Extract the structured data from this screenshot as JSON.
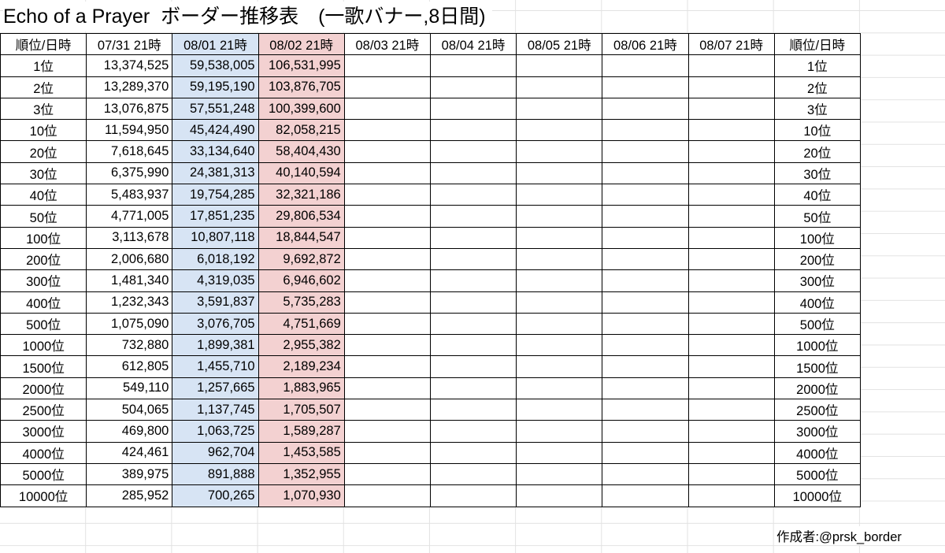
{
  "title": "Echo of a Prayer  ボーダー推移表　(一歌バナー,8日間)",
  "table": {
    "header": [
      "順位/日時",
      "07/31 21時",
      "08/01 21時",
      "08/02 21時",
      "08/03 21時",
      "08/04 21時",
      "08/05 21時",
      "08/06 21時",
      "08/07 21時",
      "順位/日時"
    ],
    "rows": [
      [
        "1位",
        "13,374,525",
        "59,538,005",
        "106,531,995",
        "1位"
      ],
      [
        "2位",
        "13,289,370",
        "59,195,190",
        "103,876,705",
        "2位"
      ],
      [
        "3位",
        "13,076,875",
        "57,551,248",
        "100,399,600",
        "3位"
      ],
      [
        "10位",
        "11,594,950",
        "45,424,490",
        "82,058,215",
        "10位"
      ],
      [
        "20位",
        "7,618,645",
        "33,134,640",
        "58,404,430",
        "20位"
      ],
      [
        "30位",
        "6,375,990",
        "24,381,313",
        "40,140,594",
        "30位"
      ],
      [
        "40位",
        "5,483,937",
        "19,754,285",
        "32,321,186",
        "40位"
      ],
      [
        "50位",
        "4,771,005",
        "17,851,235",
        "29,806,534",
        "50位"
      ],
      [
        "100位",
        "3,113,678",
        "10,807,118",
        "18,844,547",
        "100位"
      ],
      [
        "200位",
        "2,006,680",
        "6,018,192",
        "9,692,872",
        "200位"
      ],
      [
        "300位",
        "1,481,340",
        "4,319,035",
        "6,946,602",
        "300位"
      ],
      [
        "400位",
        "1,232,343",
        "3,591,837",
        "5,735,283",
        "400位"
      ],
      [
        "500位",
        "1,075,090",
        "3,076,705",
        "4,751,669",
        "500位"
      ],
      [
        "1000位",
        "732,880",
        "1,899,381",
        "2,955,382",
        "1000位"
      ],
      [
        "1500位",
        "612,805",
        "1,455,710",
        "2,189,234",
        "1500位"
      ],
      [
        "2000位",
        "549,110",
        "1,257,665",
        "1,883,965",
        "2000位"
      ],
      [
        "2500位",
        "504,065",
        "1,137,745",
        "1,705,507",
        "2500位"
      ],
      [
        "3000位",
        "469,800",
        "1,063,725",
        "1,589,287",
        "3000位"
      ],
      [
        "4000位",
        "424,461",
        "962,704",
        "1,453,585",
        "4000位"
      ],
      [
        "5000位",
        "389,975",
        "891,888",
        "1,352,955",
        "5000位"
      ],
      [
        "10000位",
        "285,952",
        "700,265",
        "1,070,930",
        "10000位"
      ]
    ]
  },
  "footer": "作成者:@prsk_border"
}
